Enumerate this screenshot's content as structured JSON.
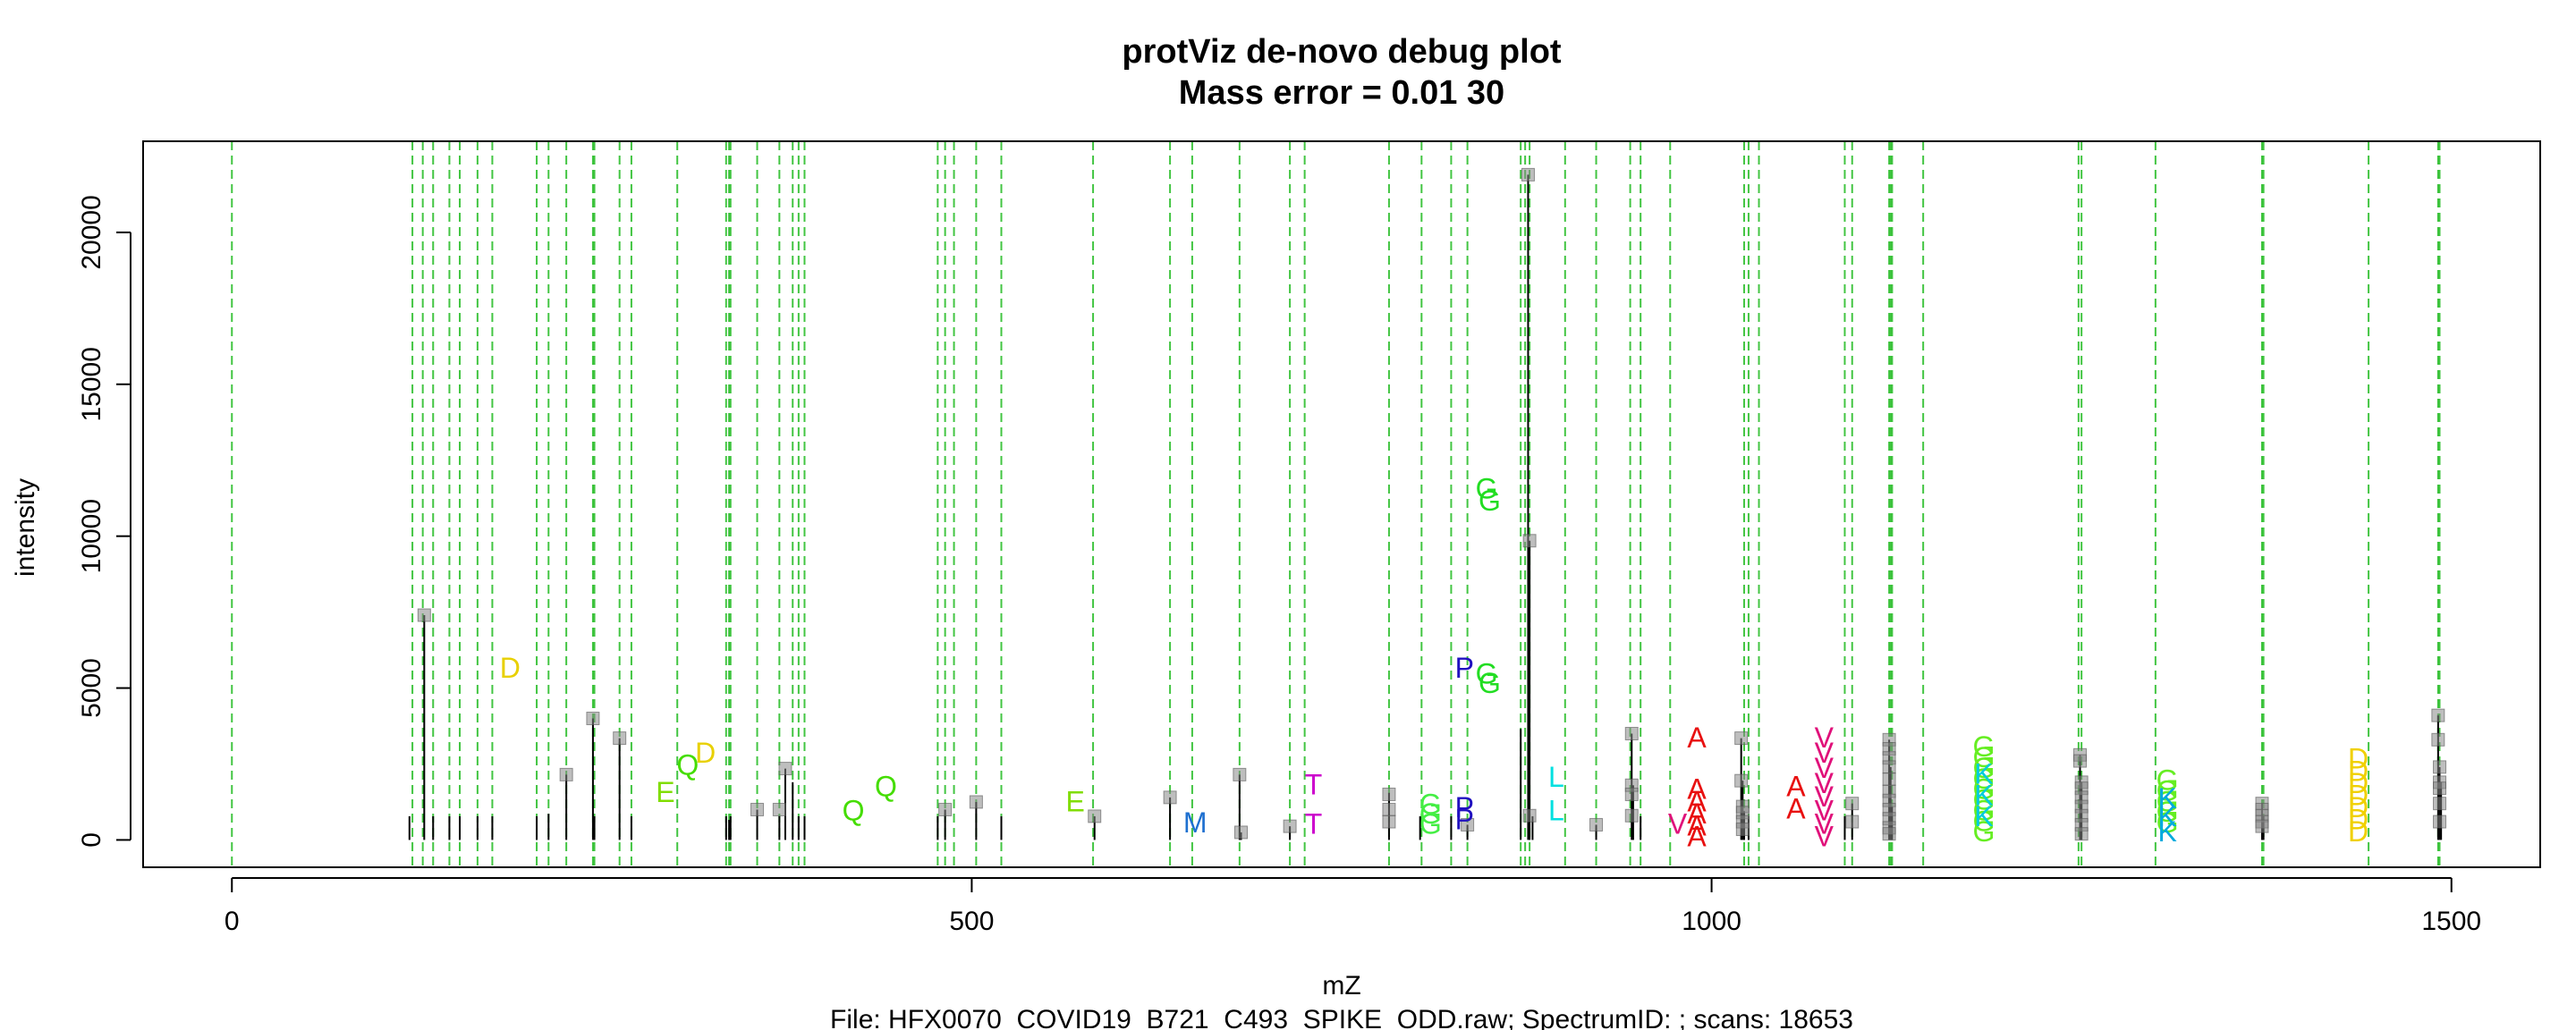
{
  "chart_data": {
    "type": "scatter",
    "title": "protViz de-novo debug plot",
    "subtitle": "Mass error = 0.01 30",
    "xlabel": "mZ",
    "ylabel": "intensity",
    "caption": "File: HFX0070_COVID19_B721_C493_SPIKE_ODD.raw; SpectrumID: ; scans: 18653",
    "xlim": [
      -60,
      1560
    ],
    "ylim": [
      -900,
      23000
    ],
    "x_ticks": [
      0,
      500,
      1000,
      1500
    ],
    "x_tick_labels": [
      "0",
      "500",
      "1000",
      "1500"
    ],
    "y_ticks": [
      0,
      5000,
      10000,
      15000,
      20000
    ],
    "y_tick_labels": [
      "0",
      "5000",
      "10000",
      "15000",
      "20000"
    ],
    "grid": false,
    "colors": {
      "peak": "#000000",
      "marker": "#888888",
      "guide": "#22bb22",
      "frame": "#000000"
    },
    "guide_lines": [
      0,
      122,
      129,
      136,
      147,
      154,
      166,
      176,
      206,
      214,
      226,
      244,
      245,
      262,
      270,
      301,
      334,
      336,
      337,
      355,
      370,
      379,
      383,
      387,
      477,
      482,
      488,
      503,
      520,
      582,
      634,
      649,
      681,
      715,
      725,
      782,
      804,
      824,
      835,
      871,
      874,
      877,
      901,
      922,
      945,
      952,
      972,
      1022,
      1025,
      1032,
      1090,
      1095,
      1120,
      1121,
      1122,
      1143,
      1248,
      1250,
      1300,
      1372,
      1373,
      1444,
      1491,
      1492
    ],
    "peaks": [
      {
        "x": 120,
        "y": 780
      },
      {
        "x": 130,
        "y": 7400
      },
      {
        "x": 136,
        "y": 780
      },
      {
        "x": 147,
        "y": 780
      },
      {
        "x": 154,
        "y": 780
      },
      {
        "x": 166,
        "y": 780
      },
      {
        "x": 176,
        "y": 780
      },
      {
        "x": 206,
        "y": 780
      },
      {
        "x": 214,
        "y": 860
      },
      {
        "x": 226,
        "y": 2150
      },
      {
        "x": 244,
        "y": 4000
      },
      {
        "x": 245,
        "y": 780
      },
      {
        "x": 262,
        "y": 3350
      },
      {
        "x": 270,
        "y": 780
      },
      {
        "x": 334,
        "y": 780
      },
      {
        "x": 336,
        "y": 660
      },
      {
        "x": 337,
        "y": 780
      },
      {
        "x": 355,
        "y": 1000
      },
      {
        "x": 370,
        "y": 780
      },
      {
        "x": 374,
        "y": 2350
      },
      {
        "x": 379,
        "y": 1900
      },
      {
        "x": 383,
        "y": 780
      },
      {
        "x": 387,
        "y": 780
      },
      {
        "x": 477,
        "y": 780
      },
      {
        "x": 482,
        "y": 1000
      },
      {
        "x": 503,
        "y": 1250
      },
      {
        "x": 520,
        "y": 780
      },
      {
        "x": 583,
        "y": 780
      },
      {
        "x": 634,
        "y": 1400
      },
      {
        "x": 681,
        "y": 2150
      },
      {
        "x": 682,
        "y": 250
      },
      {
        "x": 715,
        "y": 450
      },
      {
        "x": 782,
        "y": 1550
      },
      {
        "x": 803,
        "y": 780
      },
      {
        "x": 824,
        "y": 780
      },
      {
        "x": 835,
        "y": 500
      },
      {
        "x": 871,
        "y": 3650
      },
      {
        "x": 876,
        "y": 21900
      },
      {
        "x": 877,
        "y": 9850
      },
      {
        "x": 879,
        "y": 780
      },
      {
        "x": 922,
        "y": 500
      },
      {
        "x": 946,
        "y": 3500
      },
      {
        "x": 947,
        "y": 1800
      },
      {
        "x": 952,
        "y": 780
      },
      {
        "x": 1020,
        "y": 3350
      },
      {
        "x": 1021,
        "y": 1950
      },
      {
        "x": 1022,
        "y": 950
      },
      {
        "x": 1025,
        "y": 780
      },
      {
        "x": 1090,
        "y": 780
      },
      {
        "x": 1095,
        "y": 1200
      },
      {
        "x": 1120,
        "y": 3300
      },
      {
        "x": 1121,
        "y": 2400
      },
      {
        "x": 1122,
        "y": 1100
      },
      {
        "x": 1249,
        "y": 2800
      },
      {
        "x": 1250,
        "y": 1900
      },
      {
        "x": 1372,
        "y": 1200
      },
      {
        "x": 1373,
        "y": 780
      },
      {
        "x": 1491,
        "y": 4100
      },
      {
        "x": 1492,
        "y": 2400
      },
      {
        "x": 1493,
        "y": 1900
      }
    ],
    "markers": [
      {
        "x": 130,
        "y": 7400
      },
      {
        "x": 244,
        "y": 4000
      },
      {
        "x": 226,
        "y": 2150
      },
      {
        "x": 262,
        "y": 3350
      },
      {
        "x": 355,
        "y": 1000
      },
      {
        "x": 374,
        "y": 2350
      },
      {
        "x": 370,
        "y": 1000
      },
      {
        "x": 482,
        "y": 1000
      },
      {
        "x": 503,
        "y": 1250
      },
      {
        "x": 583,
        "y": 780
      },
      {
        "x": 634,
        "y": 1400
      },
      {
        "x": 681,
        "y": 2150
      },
      {
        "x": 682,
        "y": 250
      },
      {
        "x": 715,
        "y": 450
      },
      {
        "x": 782,
        "y": 1500
      },
      {
        "x": 782,
        "y": 1000
      },
      {
        "x": 782,
        "y": 600
      },
      {
        "x": 835,
        "y": 500
      },
      {
        "x": 876,
        "y": 21900
      },
      {
        "x": 877,
        "y": 9850
      },
      {
        "x": 877,
        "y": 800
      },
      {
        "x": 922,
        "y": 500
      },
      {
        "x": 946,
        "y": 3500
      },
      {
        "x": 946,
        "y": 1800
      },
      {
        "x": 946,
        "y": 1500
      },
      {
        "x": 946,
        "y": 800
      },
      {
        "x": 1020,
        "y": 3350
      },
      {
        "x": 1020,
        "y": 1950
      },
      {
        "x": 1021,
        "y": 1100
      },
      {
        "x": 1021,
        "y": 900
      },
      {
        "x": 1021,
        "y": 600
      },
      {
        "x": 1021,
        "y": 350
      },
      {
        "x": 1095,
        "y": 1200
      },
      {
        "x": 1095,
        "y": 600
      },
      {
        "x": 1120,
        "y": 3300
      },
      {
        "x": 1120,
        "y": 3000
      },
      {
        "x": 1120,
        "y": 2700
      },
      {
        "x": 1120,
        "y": 2400
      },
      {
        "x": 1120,
        "y": 2000
      },
      {
        "x": 1120,
        "y": 1600
      },
      {
        "x": 1120,
        "y": 1300
      },
      {
        "x": 1120,
        "y": 1000
      },
      {
        "x": 1120,
        "y": 700
      },
      {
        "x": 1120,
        "y": 400
      },
      {
        "x": 1120,
        "y": 200
      },
      {
        "x": 1249,
        "y": 2800
      },
      {
        "x": 1249,
        "y": 2600
      },
      {
        "x": 1250,
        "y": 1900
      },
      {
        "x": 1250,
        "y": 1700
      },
      {
        "x": 1250,
        "y": 1400
      },
      {
        "x": 1250,
        "y": 1100
      },
      {
        "x": 1250,
        "y": 800
      },
      {
        "x": 1250,
        "y": 500
      },
      {
        "x": 1250,
        "y": 200
      },
      {
        "x": 1372,
        "y": 1200
      },
      {
        "x": 1372,
        "y": 1000
      },
      {
        "x": 1372,
        "y": 800
      },
      {
        "x": 1372,
        "y": 600
      },
      {
        "x": 1372,
        "y": 450
      },
      {
        "x": 1491,
        "y": 4100
      },
      {
        "x": 1491,
        "y": 3300
      },
      {
        "x": 1492,
        "y": 2400
      },
      {
        "x": 1492,
        "y": 1900
      },
      {
        "x": 1492,
        "y": 1700
      },
      {
        "x": 1492,
        "y": 1200
      },
      {
        "x": 1492,
        "y": 600
      }
    ],
    "labels": [
      {
        "text": "D",
        "x": 188,
        "y": 5700,
        "color": "#e8d000"
      },
      {
        "text": "E",
        "x": 293,
        "y": 1600,
        "color": "#80dd00"
      },
      {
        "text": "Q",
        "x": 308,
        "y": 2500,
        "color": "#44dd00"
      },
      {
        "text": "D",
        "x": 320,
        "y": 2900,
        "color": "#e8d000"
      },
      {
        "text": "Q",
        "x": 420,
        "y": 1000,
        "color": "#44dd00"
      },
      {
        "text": "Q",
        "x": 442,
        "y": 1800,
        "color": "#44dd00"
      },
      {
        "text": "E",
        "x": 570,
        "y": 1300,
        "color": "#80dd00"
      },
      {
        "text": "M",
        "x": 651,
        "y": 600,
        "color": "#1e70d0"
      },
      {
        "text": "T",
        "x": 731,
        "y": 1850,
        "color": "#cc00cc"
      },
      {
        "text": "T",
        "x": 731,
        "y": 550,
        "color": "#cc00cc"
      },
      {
        "text": "G",
        "x": 810,
        "y": 1200,
        "color": "#44ee44"
      },
      {
        "text": "G",
        "x": 810,
        "y": 900,
        "color": "#44ee44"
      },
      {
        "text": "G",
        "x": 810,
        "y": 550,
        "color": "#44ee44"
      },
      {
        "text": "P",
        "x": 833,
        "y": 5700,
        "color": "#2010c0"
      },
      {
        "text": "P",
        "x": 833,
        "y": 1100,
        "color": "#2010c0"
      },
      {
        "text": "P",
        "x": 833,
        "y": 700,
        "color": "#2010c0"
      },
      {
        "text": "G",
        "x": 848,
        "y": 11600,
        "color": "#22dd22"
      },
      {
        "text": "G",
        "x": 850,
        "y": 11200,
        "color": "#22dd22"
      },
      {
        "text": "G",
        "x": 848,
        "y": 5500,
        "color": "#22dd22"
      },
      {
        "text": "G",
        "x": 850,
        "y": 5200,
        "color": "#22dd22"
      },
      {
        "text": "L",
        "x": 895,
        "y": 2100,
        "color": "#00e0e0"
      },
      {
        "text": "L",
        "x": 895,
        "y": 1000,
        "color": "#00e0e0"
      },
      {
        "text": "V",
        "x": 977,
        "y": 550,
        "color": "#e0107a"
      },
      {
        "text": "A",
        "x": 990,
        "y": 3400,
        "color": "#e81010"
      },
      {
        "text": "A",
        "x": 990,
        "y": 1700,
        "color": "#e81010"
      },
      {
        "text": "A",
        "x": 990,
        "y": 1300,
        "color": "#e81010"
      },
      {
        "text": "A",
        "x": 990,
        "y": 900,
        "color": "#e81010"
      },
      {
        "text": "A",
        "x": 990,
        "y": 500,
        "color": "#e81010"
      },
      {
        "text": "A",
        "x": 990,
        "y": 150,
        "color": "#e81010"
      },
      {
        "text": "A",
        "x": 1057,
        "y": 1800,
        "color": "#e81010"
      },
      {
        "text": "A",
        "x": 1057,
        "y": 1050,
        "color": "#e81010"
      },
      {
        "text": "V",
        "x": 1076,
        "y": 3400,
        "color": "#e0107a"
      },
      {
        "text": "V",
        "x": 1076,
        "y": 2900,
        "color": "#e0107a"
      },
      {
        "text": "V",
        "x": 1076,
        "y": 2400,
        "color": "#e0107a"
      },
      {
        "text": "V",
        "x": 1076,
        "y": 1900,
        "color": "#e0107a"
      },
      {
        "text": "V",
        "x": 1076,
        "y": 1450,
        "color": "#e0107a"
      },
      {
        "text": "V",
        "x": 1076,
        "y": 1000,
        "color": "#e0107a"
      },
      {
        "text": "V",
        "x": 1076,
        "y": 550,
        "color": "#e0107a"
      },
      {
        "text": "V",
        "x": 1076,
        "y": 150,
        "color": "#e0107a"
      },
      {
        "text": "G",
        "x": 1184,
        "y": 3100,
        "color": "#66ee22"
      },
      {
        "text": "G",
        "x": 1184,
        "y": 2750,
        "color": "#66ee22"
      },
      {
        "text": "G",
        "x": 1184,
        "y": 2400,
        "color": "#66ee22"
      },
      {
        "text": "G",
        "x": 1184,
        "y": 2050,
        "color": "#66ee22"
      },
      {
        "text": "G",
        "x": 1184,
        "y": 1700,
        "color": "#66ee22"
      },
      {
        "text": "G",
        "x": 1184,
        "y": 1350,
        "color": "#66ee22"
      },
      {
        "text": "G",
        "x": 1184,
        "y": 1000,
        "color": "#66ee22"
      },
      {
        "text": "G",
        "x": 1184,
        "y": 650,
        "color": "#66ee22"
      },
      {
        "text": "G",
        "x": 1184,
        "y": 300,
        "color": "#66ee22"
      },
      {
        "text": "K",
        "x": 1184,
        "y": 2200,
        "color": "#00ccdd"
      },
      {
        "text": "K",
        "x": 1184,
        "y": 1500,
        "color": "#00ccdd"
      },
      {
        "text": "K",
        "x": 1184,
        "y": 800,
        "color": "#00ccdd"
      },
      {
        "text": "G",
        "x": 1308,
        "y": 2000,
        "color": "#66ee22"
      },
      {
        "text": "G",
        "x": 1308,
        "y": 1650,
        "color": "#66ee22"
      },
      {
        "text": "G",
        "x": 1308,
        "y": 1300,
        "color": "#66ee22"
      },
      {
        "text": "G",
        "x": 1308,
        "y": 950,
        "color": "#66ee22"
      },
      {
        "text": "G",
        "x": 1308,
        "y": 600,
        "color": "#66ee22"
      },
      {
        "text": "K",
        "x": 1308,
        "y": 1400,
        "color": "#00aadd"
      },
      {
        "text": "K",
        "x": 1308,
        "y": 800,
        "color": "#00aadd"
      },
      {
        "text": "K",
        "x": 1308,
        "y": 300,
        "color": "#00aadd"
      },
      {
        "text": "D",
        "x": 1437,
        "y": 2700,
        "color": "#f0d000"
      },
      {
        "text": "D",
        "x": 1437,
        "y": 2300,
        "color": "#f0d000"
      },
      {
        "text": "D",
        "x": 1437,
        "y": 1900,
        "color": "#f0d000"
      },
      {
        "text": "D",
        "x": 1437,
        "y": 1500,
        "color": "#f0d000"
      },
      {
        "text": "D",
        "x": 1437,
        "y": 1100,
        "color": "#f0d000"
      },
      {
        "text": "D",
        "x": 1437,
        "y": 700,
        "color": "#f0d000"
      },
      {
        "text": "D",
        "x": 1437,
        "y": 300,
        "color": "#f0d000"
      }
    ]
  }
}
